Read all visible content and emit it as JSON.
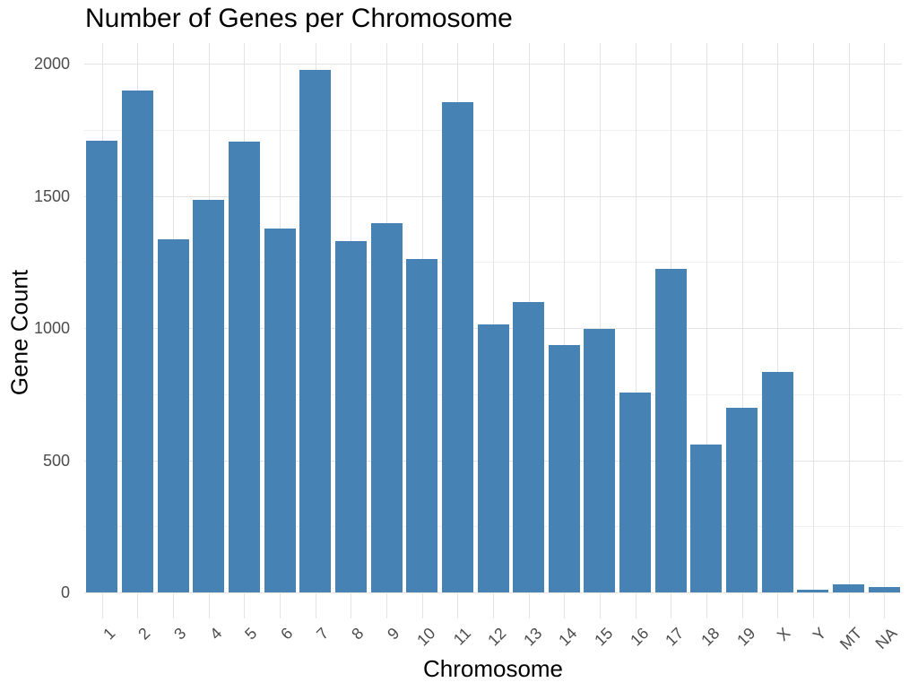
{
  "chart_data": {
    "type": "bar",
    "title": "Number of Genes per Chromosome",
    "xlabel": "Chromosome",
    "ylabel": "Gene Count",
    "categories": [
      "1",
      "2",
      "3",
      "4",
      "5",
      "6",
      "7",
      "8",
      "9",
      "10",
      "11",
      "12",
      "13",
      "14",
      "15",
      "16",
      "17",
      "18",
      "19",
      "X",
      "Y",
      "MT",
      "NA"
    ],
    "values": [
      1710,
      1900,
      1335,
      1485,
      1705,
      1375,
      1975,
      1330,
      1395,
      1260,
      1855,
      1015,
      1100,
      935,
      995,
      755,
      1225,
      560,
      700,
      835,
      10,
      30,
      20
    ],
    "yticks": [
      0,
      500,
      1000,
      1500,
      2000
    ],
    "y_minor_ticks": [
      250,
      750,
      1250,
      1750
    ],
    "ylim": [
      0,
      2080
    ],
    "grid": true,
    "legend": false,
    "bar_gap_ratio": 0.12,
    "colors": {
      "bar": "#4682B4",
      "grid_major": "#E4E4E4",
      "grid_minor": "#F0F0F0",
      "tick_text": "#4D4D4D",
      "title_text": "#000000",
      "background": "#FFFFFF"
    }
  }
}
